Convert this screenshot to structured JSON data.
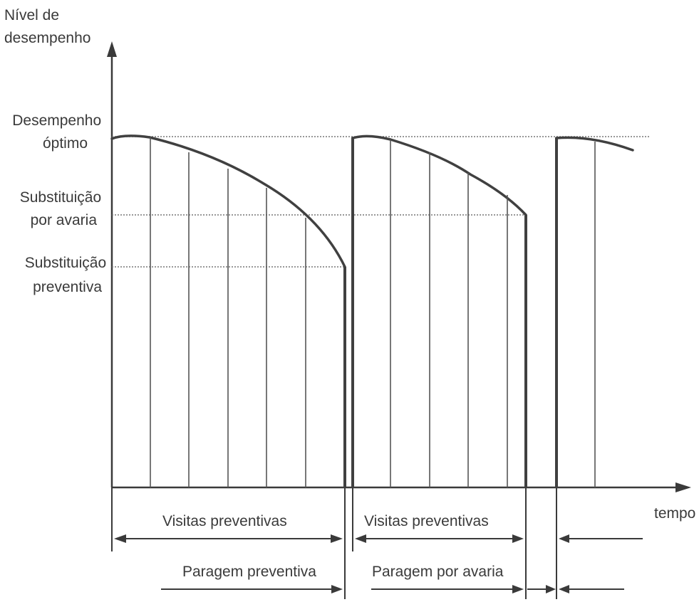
{
  "y_axis_label": [
    "Nível de",
    "desempenho"
  ],
  "x_axis_label": "tempo",
  "levels": {
    "optimal": [
      "Desempenho",
      "óptimo"
    ],
    "breakdown": [
      "Substituição",
      "por avaria"
    ],
    "preventive": [
      "Substituição",
      "preventiva"
    ]
  },
  "intervals": {
    "visits_1": "Visitas preventivas",
    "visits_2": "Visitas preventivas",
    "stop_preventive": "Paragem preventiva",
    "stop_breakdown": "Paragem por avaria"
  },
  "colors": {
    "line": "#404040",
    "text": "#3a3a3a"
  }
}
